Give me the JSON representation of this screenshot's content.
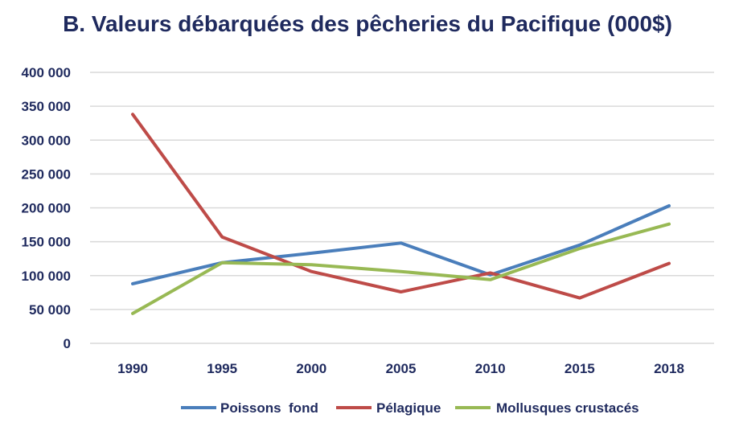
{
  "chart_data": {
    "type": "line",
    "title": "B. Valeurs débarquées des pêcheries du Pacifique (000$)",
    "xlabel": "",
    "ylabel": "",
    "categories": [
      "1990",
      "1995",
      "2000",
      "2005",
      "2010",
      "2015",
      "2018"
    ],
    "ylim": [
      0,
      400000
    ],
    "yticks": [
      0,
      50000,
      100000,
      150000,
      200000,
      250000,
      300000,
      350000,
      400000
    ],
    "ytick_labels": [
      "0",
      "50 000",
      "100 000",
      "150 000",
      "200 000",
      "250 000",
      "300 000",
      "350 000",
      "400 000"
    ],
    "grid": true,
    "legend_position": "bottom",
    "series": [
      {
        "name": "Poissons  fond",
        "color": "#4a7ebb",
        "values": [
          88000,
          119000,
          133000,
          148000,
          101000,
          145000,
          203000
        ]
      },
      {
        "name": "Pélagique",
        "color": "#be4b48",
        "values": [
          338000,
          157000,
          106000,
          76000,
          104000,
          67000,
          118000
        ]
      },
      {
        "name": "Mollusques crustacés",
        "color": "#98b954",
        "values": [
          44000,
          119000,
          116000,
          106000,
          94000,
          140000,
          176000
        ]
      }
    ]
  }
}
